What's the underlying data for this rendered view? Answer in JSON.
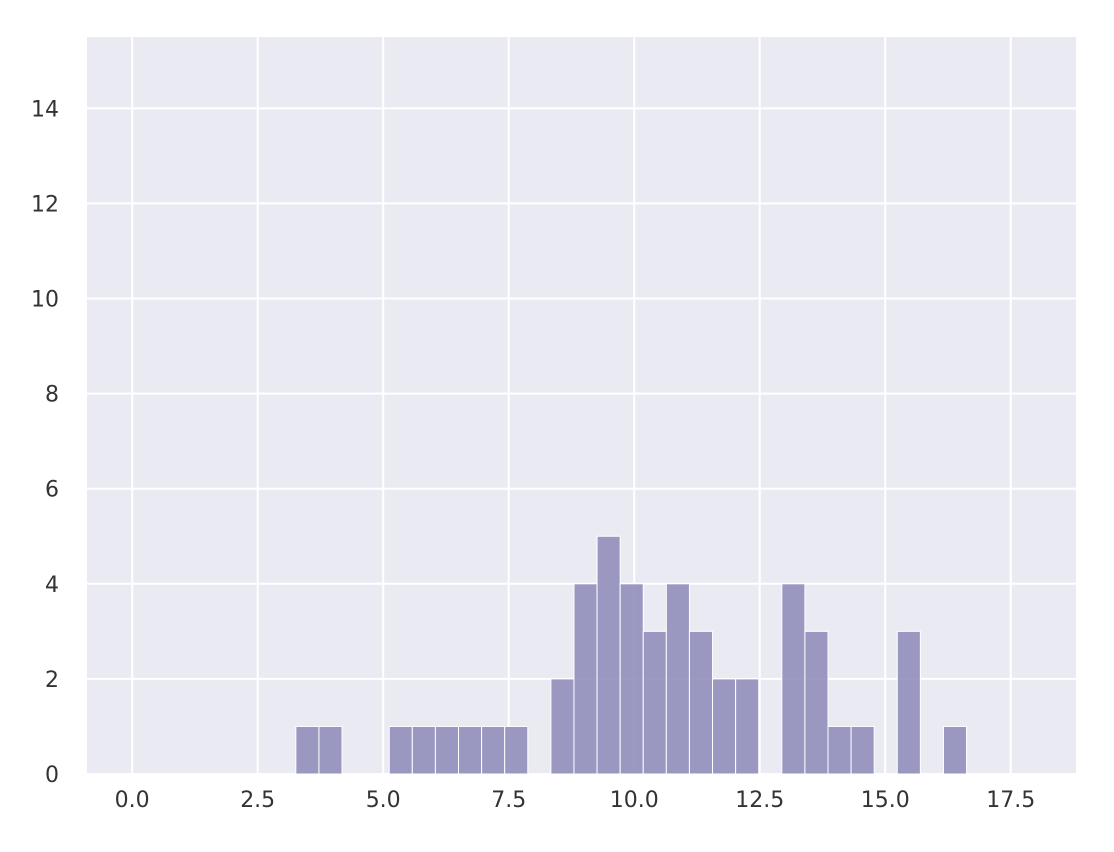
{
  "chart_data": {
    "type": "bar",
    "subtype": "histogram",
    "title": "",
    "xlabel": "",
    "ylabel": "",
    "xlim": [
      -0.9,
      18.8
    ],
    "ylim": [
      0,
      15.5
    ],
    "xticks": [
      {
        "value": 0.0,
        "label": "0.0"
      },
      {
        "value": 2.5,
        "label": "2.5"
      },
      {
        "value": 5.0,
        "label": "5.0"
      },
      {
        "value": 7.5,
        "label": "7.5"
      },
      {
        "value": 10.0,
        "label": "10.0"
      },
      {
        "value": 12.5,
        "label": "12.5"
      },
      {
        "value": 15.0,
        "label": "15.0"
      },
      {
        "value": 17.5,
        "label": "17.5"
      }
    ],
    "yticks": [
      {
        "value": 0,
        "label": "0"
      },
      {
        "value": 2,
        "label": "2"
      },
      {
        "value": 4,
        "label": "4"
      },
      {
        "value": 6,
        "label": "6"
      },
      {
        "value": 8,
        "label": "8"
      },
      {
        "value": 10,
        "label": "10"
      },
      {
        "value": 12,
        "label": "12"
      },
      {
        "value": 14,
        "label": "14"
      }
    ],
    "grid": true,
    "colors": {
      "bar": "#8e8cb8",
      "background": "#eaeaf2",
      "grid": "#ffffff",
      "text": "#333333"
    },
    "bins": [
      {
        "start": 3.26,
        "end": 3.72,
        "count": 1
      },
      {
        "start": 3.72,
        "end": 4.18,
        "count": 1
      },
      {
        "start": 5.12,
        "end": 5.58,
        "count": 1
      },
      {
        "start": 5.58,
        "end": 6.04,
        "count": 1
      },
      {
        "start": 6.04,
        "end": 6.5,
        "count": 1
      },
      {
        "start": 6.5,
        "end": 6.96,
        "count": 1
      },
      {
        "start": 6.96,
        "end": 7.42,
        "count": 1
      },
      {
        "start": 7.42,
        "end": 7.88,
        "count": 1
      },
      {
        "start": 8.34,
        "end": 8.8,
        "count": 2
      },
      {
        "start": 8.8,
        "end": 9.26,
        "count": 4
      },
      {
        "start": 9.26,
        "end": 9.72,
        "count": 5
      },
      {
        "start": 9.72,
        "end": 10.18,
        "count": 4
      },
      {
        "start": 10.18,
        "end": 10.64,
        "count": 3
      },
      {
        "start": 10.64,
        "end": 11.1,
        "count": 4
      },
      {
        "start": 11.1,
        "end": 11.56,
        "count": 3
      },
      {
        "start": 11.56,
        "end": 12.02,
        "count": 2
      },
      {
        "start": 12.02,
        "end": 12.48,
        "count": 2
      },
      {
        "start": 12.94,
        "end": 13.4,
        "count": 4
      },
      {
        "start": 13.4,
        "end": 13.86,
        "count": 3
      },
      {
        "start": 13.86,
        "end": 14.32,
        "count": 1
      },
      {
        "start": 14.32,
        "end": 14.78,
        "count": 1
      },
      {
        "start": 15.24,
        "end": 15.7,
        "count": 3
      },
      {
        "start": 16.16,
        "end": 16.62,
        "count": 1
      }
    ]
  }
}
